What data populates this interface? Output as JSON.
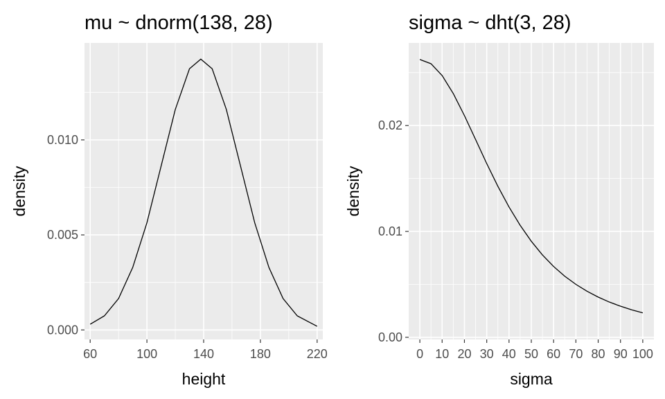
{
  "chart_data": [
    {
      "type": "line",
      "title": "mu ~ dnorm(138, 28)",
      "xlabel": "height",
      "ylabel": "density",
      "xlim": [
        56,
        224
      ],
      "ylim": [
        -0.0005,
        0.0151
      ],
      "x_ticks": [
        60,
        100,
        140,
        180,
        220
      ],
      "x_tick_labels": [
        "60",
        "100",
        "140",
        "180",
        "220"
      ],
      "y_ticks": [
        0,
        0.005,
        0.01
      ],
      "y_tick_labels": [
        "0.000",
        "0.005",
        "0.010"
      ],
      "grid": true,
      "series": [
        {
          "x": [
            60,
            70,
            80,
            90,
            100,
            110,
            120,
            130,
            138,
            146,
            156,
            166,
            176,
            186,
            196,
            206,
            220
          ],
          "y": [
            0.0003,
            0.00074,
            0.00165,
            0.00329,
            0.00564,
            0.00862,
            0.0116,
            0.01374,
            0.01425,
            0.01374,
            0.0116,
            0.00862,
            0.00564,
            0.00329,
            0.00165,
            0.00074,
            0.00019
          ]
        }
      ]
    },
    {
      "type": "line",
      "title": "sigma ~ dht(3, 28)",
      "xlabel": "sigma",
      "ylabel": "density",
      "xlim": [
        -5,
        105
      ],
      "ylim": [
        -0.0002,
        0.0278
      ],
      "x_ticks": [
        0,
        10,
        20,
        30,
        40,
        50,
        60,
        70,
        80,
        90,
        100
      ],
      "x_tick_labels": [
        "0",
        "10",
        "20",
        "30",
        "40",
        "50",
        "60",
        "70",
        "80",
        "90",
        "100"
      ],
      "y_ticks": [
        0,
        0.01,
        0.02
      ],
      "y_tick_labels": [
        "0.00",
        "0.01",
        "0.02"
      ],
      "grid": true,
      "series": [
        {
          "x": [
            0,
            5,
            10,
            15,
            20,
            25,
            30,
            35,
            40,
            45,
            50,
            55,
            60,
            65,
            70,
            75,
            80,
            85,
            90,
            95,
            100
          ],
          "y": [
            0.02624,
            0.02584,
            0.02472,
            0.02302,
            0.02094,
            0.01868,
            0.01641,
            0.01426,
            0.01231,
            0.01058,
            0.00907,
            0.00778,
            0.00669,
            0.00577,
            0.005,
            0.00435,
            0.0038,
            0.00333,
            0.00294,
            0.0026,
            0.00231
          ]
        }
      ]
    }
  ]
}
